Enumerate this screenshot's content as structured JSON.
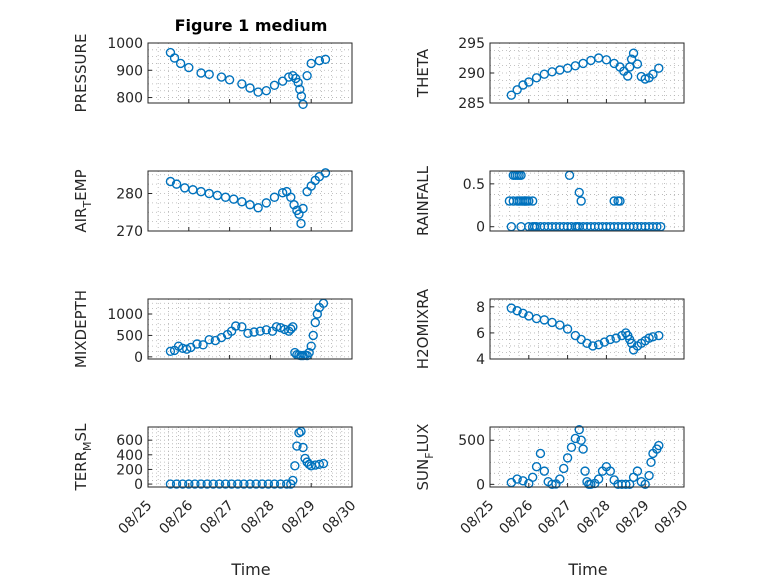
{
  "figure_title": "Figure 1 medium",
  "colors": {
    "marker": "#0072BD",
    "axis": "#262626",
    "grid": "#b0b0b0"
  },
  "chart_data": [
    {
      "type": "scatter",
      "panel": "left-1",
      "ylabel": "PRESSURE",
      "ylabel_sub": "",
      "ylabel_tail": "",
      "title": "Figure 1 medium",
      "ylim": [
        780,
        1000
      ],
      "yticks": [
        800,
        900,
        1000
      ],
      "x": [
        25.55,
        25.65,
        25.8,
        26.0,
        26.3,
        26.5,
        26.8,
        27.0,
        27.3,
        27.5,
        27.7,
        27.9,
        28.1,
        28.3,
        28.45,
        28.55,
        28.62,
        28.68,
        28.72,
        28.76,
        28.8,
        28.9,
        29.0,
        29.2,
        29.35
      ],
      "y": [
        965,
        945,
        925,
        910,
        890,
        885,
        875,
        865,
        850,
        835,
        820,
        825,
        845,
        860,
        875,
        880,
        870,
        855,
        830,
        805,
        775,
        880,
        925,
        935,
        940
      ]
    },
    {
      "type": "scatter",
      "panel": "right-1",
      "ylabel": "THETA",
      "ylabel_sub": "",
      "ylabel_tail": "",
      "ylim": [
        285,
        295
      ],
      "yticks": [
        285,
        290,
        295
      ],
      "x": [
        25.55,
        25.7,
        25.85,
        26.0,
        26.2,
        26.4,
        26.6,
        26.8,
        27.0,
        27.2,
        27.4,
        27.6,
        27.8,
        28.0,
        28.2,
        28.35,
        28.45,
        28.55,
        28.6,
        28.65,
        28.7,
        28.8,
        28.9,
        29.0,
        29.1,
        29.2,
        29.35
      ],
      "y": [
        286.3,
        287.2,
        288.0,
        288.5,
        289.2,
        289.8,
        290.2,
        290.5,
        290.8,
        291.2,
        291.6,
        292.1,
        292.5,
        292.2,
        291.6,
        291.0,
        290.3,
        289.5,
        291.0,
        292.3,
        293.3,
        291.5,
        289.4,
        289.0,
        289.2,
        289.8,
        290.8
      ]
    },
    {
      "type": "scatter",
      "panel": "left-2",
      "ylabel": "AIR",
      "ylabel_sub": "T",
      "ylabel_tail": "EMP",
      "ylim": [
        270,
        286
      ],
      "yticks": [
        270,
        280
      ],
      "x": [
        25.55,
        25.7,
        25.9,
        26.1,
        26.3,
        26.5,
        26.7,
        26.9,
        27.1,
        27.3,
        27.5,
        27.7,
        27.9,
        28.1,
        28.3,
        28.4,
        28.5,
        28.58,
        28.65,
        28.7,
        28.75,
        28.8,
        28.9,
        29.0,
        29.1,
        29.2,
        29.35
      ],
      "y": [
        283.2,
        282.5,
        281.5,
        281.0,
        280.5,
        280.0,
        279.5,
        279.0,
        278.5,
        277.8,
        277.0,
        276.2,
        277.5,
        279.0,
        280.2,
        280.5,
        279.0,
        277.0,
        275.5,
        274.5,
        272.0,
        276.0,
        280.5,
        282.0,
        283.5,
        284.5,
        285.5
      ]
    },
    {
      "type": "scatter",
      "panel": "right-2",
      "ylabel": "RAINFALL",
      "ylabel_sub": "",
      "ylabel_tail": "",
      "ylim": [
        -0.05,
        0.65
      ],
      "yticks": [
        0,
        0.5
      ],
      "x": [
        25.5,
        25.55,
        25.6,
        25.65,
        25.7,
        25.75,
        25.8,
        25.85,
        25.9,
        25.95,
        26.0,
        26.1,
        26.2,
        26.3,
        26.4,
        26.5,
        26.6,
        26.7,
        26.8,
        26.9,
        27.0,
        27.1,
        27.2,
        27.25,
        27.3,
        27.4,
        27.5,
        27.6,
        27.7,
        27.8,
        27.9,
        28.0,
        28.1,
        28.2,
        28.3,
        28.4,
        28.5,
        28.6,
        28.7,
        28.8,
        28.9,
        29.0,
        29.1,
        29.2,
        29.3,
        29.4,
        25.6,
        25.7,
        25.75,
        25.8,
        25.9,
        26.0,
        26.1,
        26.15,
        27.3,
        27.35,
        28.2,
        28.3,
        28.35,
        25.8,
        27.05
      ],
      "y": [
        0.3,
        0,
        0.6,
        0.6,
        0.6,
        0.3,
        0,
        0.3,
        0.3,
        0.3,
        0,
        0,
        0,
        0,
        0,
        0,
        0,
        0,
        0,
        0,
        0,
        0,
        0,
        0,
        0,
        0,
        0,
        0,
        0,
        0,
        0,
        0,
        0,
        0,
        0,
        0,
        0,
        0,
        0,
        0,
        0,
        0,
        0,
        0,
        0,
        0,
        0.3,
        0.3,
        0.6,
        0.3,
        0.3,
        0.3,
        0.3,
        0,
        0.4,
        0.3,
        0.3,
        0.3,
        0.3,
        0.6,
        0.6
      ]
    },
    {
      "type": "scatter",
      "panel": "left-3",
      "ylabel": "MIXDEPTH",
      "ylabel_sub": "",
      "ylabel_tail": "",
      "ylim": [
        -50,
        1350
      ],
      "yticks": [
        0,
        500,
        1000
      ],
      "x": [
        25.55,
        25.65,
        25.75,
        25.85,
        25.95,
        26.05,
        26.2,
        26.35,
        26.5,
        26.65,
        26.8,
        26.95,
        27.05,
        27.15,
        27.3,
        27.45,
        27.6,
        27.75,
        27.9,
        28.05,
        28.15,
        28.25,
        28.35,
        28.45,
        28.5,
        28.55,
        28.6,
        28.65,
        28.7,
        28.75,
        28.8,
        28.85,
        28.9,
        28.95,
        29.0,
        29.05,
        29.1,
        29.15,
        29.2,
        29.3
      ],
      "y": [
        130,
        150,
        250,
        200,
        180,
        220,
        300,
        280,
        400,
        380,
        450,
        520,
        600,
        720,
        700,
        550,
        580,
        600,
        630,
        600,
        700,
        680,
        640,
        600,
        650,
        700,
        100,
        50,
        40,
        30,
        30,
        40,
        30,
        100,
        250,
        500,
        800,
        1000,
        1150,
        1250
      ]
    },
    {
      "type": "scatter",
      "panel": "right-3",
      "ylabel": "H2OMIXRA",
      "ylabel_sub": "",
      "ylabel_tail": "",
      "ylim": [
        4,
        8.6
      ],
      "yticks": [
        4,
        6,
        8
      ],
      "x": [
        25.55,
        25.7,
        25.85,
        26.0,
        26.2,
        26.4,
        26.6,
        26.8,
        27.0,
        27.2,
        27.35,
        27.5,
        27.65,
        27.8,
        27.95,
        28.1,
        28.25,
        28.4,
        28.5,
        28.55,
        28.6,
        28.65,
        28.7,
        28.8,
        28.9,
        29.0,
        29.1,
        29.2,
        29.35
      ],
      "y": [
        7.9,
        7.7,
        7.5,
        7.3,
        7.1,
        7.0,
        6.8,
        6.6,
        6.3,
        5.8,
        5.5,
        5.2,
        5.0,
        5.1,
        5.3,
        5.5,
        5.6,
        5.8,
        6.0,
        5.8,
        5.5,
        5.2,
        4.7,
        5.0,
        5.2,
        5.4,
        5.6,
        5.7,
        5.8
      ]
    },
    {
      "type": "scatter",
      "panel": "left-4",
      "ylabel": "TERR",
      "ylabel_sub": "M",
      "ylabel_tail": "SL",
      "ylim": [
        -40,
        780
      ],
      "yticks": [
        0,
        200,
        400,
        600
      ],
      "x": [
        25.55,
        25.7,
        25.85,
        26.0,
        26.15,
        26.3,
        26.45,
        26.6,
        26.75,
        26.9,
        27.05,
        27.2,
        27.35,
        27.5,
        27.65,
        27.8,
        27.95,
        28.1,
        28.25,
        28.4,
        28.5,
        28.55,
        28.6,
        28.65,
        28.7,
        28.75,
        28.8,
        28.85,
        28.9,
        28.95,
        29.0,
        29.1,
        29.2,
        29.3
      ],
      "y": [
        0,
        0,
        0,
        0,
        0,
        0,
        0,
        0,
        0,
        0,
        0,
        0,
        0,
        0,
        0,
        0,
        0,
        0,
        0,
        0,
        0,
        50,
        250,
        520,
        700,
        720,
        500,
        350,
        300,
        270,
        250,
        260,
        270,
        280
      ]
    },
    {
      "type": "scatter",
      "panel": "right-4",
      "ylabel": "SUN",
      "ylabel_sub": "F",
      "ylabel_tail": "LUX",
      "ylim": [
        -30,
        650
      ],
      "yticks": [
        0,
        500
      ],
      "x": [
        25.55,
        25.7,
        25.85,
        26.0,
        26.1,
        26.2,
        26.3,
        26.4,
        26.5,
        26.6,
        26.7,
        26.8,
        26.9,
        27.0,
        27.1,
        27.2,
        27.3,
        27.35,
        27.4,
        27.45,
        27.5,
        27.55,
        27.6,
        27.7,
        27.8,
        27.9,
        28.0,
        28.1,
        28.2,
        28.3,
        28.4,
        28.5,
        28.6,
        28.7,
        28.8,
        28.9,
        29.0,
        29.1,
        29.15,
        29.2,
        29.3,
        29.35
      ],
      "y": [
        20,
        60,
        40,
        10,
        80,
        200,
        350,
        150,
        30,
        0,
        5,
        60,
        180,
        300,
        420,
        520,
        620,
        500,
        400,
        150,
        30,
        0,
        0,
        10,
        60,
        150,
        200,
        150,
        50,
        0,
        0,
        0,
        0,
        80,
        150,
        30,
        0,
        100,
        250,
        350,
        400,
        440
      ]
    }
  ],
  "x_axis": {
    "xlim": [
      25,
      30
    ],
    "ticks": [
      25,
      26,
      27,
      28,
      29,
      30
    ],
    "tick_labels": [
      "08/25",
      "08/26",
      "08/27",
      "08/28",
      "08/29",
      "08/30"
    ],
    "label": "Time"
  }
}
